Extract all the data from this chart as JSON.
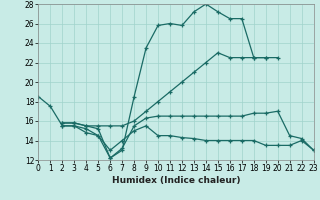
{
  "xlabel": "Humidex (Indice chaleur)",
  "background_color": "#c8ebe6",
  "grid_color": "#a0d4cc",
  "line_color": "#1a6b65",
  "xlim": [
    0,
    23
  ],
  "ylim": [
    12,
    28
  ],
  "xticks": [
    0,
    1,
    2,
    3,
    4,
    5,
    6,
    7,
    8,
    9,
    10,
    11,
    12,
    13,
    14,
    15,
    16,
    17,
    18,
    19,
    20,
    21,
    22,
    23
  ],
  "yticks": [
    12,
    14,
    16,
    18,
    20,
    22,
    24,
    26,
    28
  ],
  "lines": [
    {
      "x": [
        0,
        1,
        2,
        3,
        4,
        5,
        6,
        7,
        8,
        9,
        10,
        11,
        12,
        13,
        14,
        15,
        16,
        17,
        18,
        19
      ],
      "y": [
        18.5,
        17.5,
        15.5,
        15.5,
        15.2,
        14.5,
        12.2,
        13.0,
        18.5,
        23.5,
        25.8,
        26.0,
        25.8,
        27.2,
        28.0,
        27.2,
        26.5,
        26.5,
        22.5,
        22.5
      ]
    },
    {
      "x": [
        2,
        3,
        4,
        5,
        6,
        7,
        8,
        9,
        10,
        11,
        12,
        13,
        14,
        15,
        16,
        17,
        18,
        19,
        20
      ],
      "y": [
        15.8,
        15.8,
        15.5,
        15.5,
        15.5,
        15.5,
        16.0,
        17.0,
        18.0,
        19.0,
        20.0,
        21.0,
        22.0,
        23.0,
        22.5,
        22.5,
        22.5,
        22.5,
        22.5
      ]
    },
    {
      "x": [
        2,
        3,
        4,
        5,
        6,
        7,
        8,
        9,
        10,
        11,
        12,
        13,
        14,
        15,
        16,
        17,
        18,
        19,
        20,
        21,
        22,
        23
      ],
      "y": [
        15.8,
        15.8,
        15.5,
        15.2,
        12.2,
        13.2,
        15.5,
        16.3,
        16.5,
        16.5,
        16.5,
        16.5,
        16.5,
        16.5,
        16.5,
        16.5,
        16.8,
        16.8,
        17.0,
        14.5,
        14.2,
        13.0
      ]
    },
    {
      "x": [
        2,
        3,
        4,
        5,
        6,
        7,
        8,
        9,
        10,
        11,
        12,
        13,
        14,
        15,
        16,
        17,
        18,
        19,
        20,
        21,
        22,
        23
      ],
      "y": [
        15.5,
        15.5,
        14.8,
        14.5,
        13.0,
        14.0,
        15.0,
        15.5,
        14.5,
        14.5,
        14.3,
        14.2,
        14.0,
        14.0,
        14.0,
        14.0,
        14.0,
        13.5,
        13.5,
        13.5,
        14.0,
        13.0
      ]
    }
  ]
}
